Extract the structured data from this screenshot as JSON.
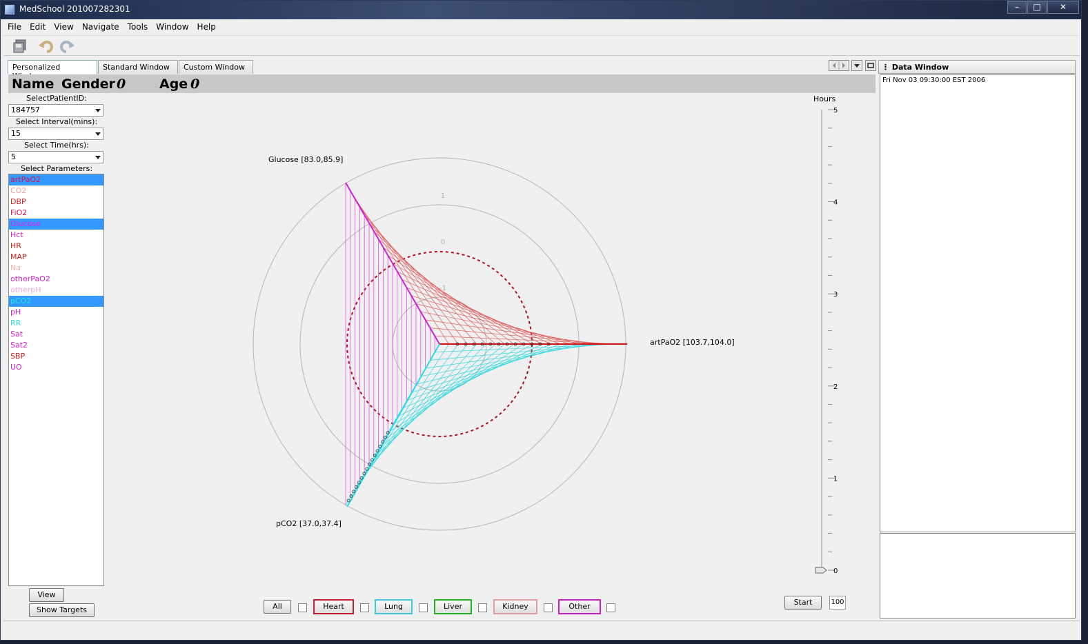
{
  "window": {
    "title": "MedSchool 201007282301"
  },
  "menu": [
    "File",
    "Edit",
    "View",
    "Navigate",
    "Tools",
    "Window",
    "Help"
  ],
  "toolbar": {
    "icons": [
      "save-all-icon",
      "undo-icon",
      "redo-icon"
    ]
  },
  "tabs": [
    "Personalized Window",
    "Standard Window",
    "Custom Window"
  ],
  "header": {
    "name_label": "Name",
    "gender_label": "Gender",
    "gender_value": "0",
    "age_label": "Age",
    "age_value": "0"
  },
  "controls": {
    "patient_label": "SelectPatientID:",
    "patient_value": "184757",
    "interval_label": "Select Interval(mins):",
    "interval_value": "15",
    "time_label": "Select Time(hrs):",
    "time_value": "5",
    "params_label": "Select Parameters:"
  },
  "parameters": [
    {
      "name": "artPaO2",
      "color": "#d4124a",
      "selected": true
    },
    {
      "name": "CO2",
      "color": "#f2a0a0",
      "selected": false
    },
    {
      "name": "DBP",
      "color": "#cc2222",
      "selected": false
    },
    {
      "name": "FiO2",
      "color": "#d4124a",
      "selected": false
    },
    {
      "name": "Glucose",
      "color": "#e020e0",
      "selected": true
    },
    {
      "name": "Hct",
      "color": "#d020c8",
      "selected": false
    },
    {
      "name": "HR",
      "color": "#cc2222",
      "selected": false
    },
    {
      "name": "MAP",
      "color": "#cc2222",
      "selected": false
    },
    {
      "name": "Na",
      "color": "#f0b0b0",
      "selected": false
    },
    {
      "name": "otherPaO2",
      "color": "#d020c8",
      "selected": false
    },
    {
      "name": "otherpH",
      "color": "#f0a8d8",
      "selected": false
    },
    {
      "name": "pCO2",
      "color": "#20e8e8",
      "selected": true
    },
    {
      "name": "pH",
      "color": "#d020c8",
      "selected": false
    },
    {
      "name": "RR",
      "color": "#30d8e0",
      "selected": false
    },
    {
      "name": "Sat",
      "color": "#d020c8",
      "selected": false
    },
    {
      "name": "Sat2",
      "color": "#d020c8",
      "selected": false
    },
    {
      "name": "SBP",
      "color": "#cc2222",
      "selected": false
    },
    {
      "name": "UO",
      "color": "#d020c8",
      "selected": false
    }
  ],
  "buttons": {
    "view": "View",
    "show_targets": "Show Targets",
    "start": "Start",
    "speed_value": "100",
    "all": "All"
  },
  "organs": [
    {
      "label": "Heart",
      "color": "#c02030"
    },
    {
      "label": "Lung",
      "color": "#40c8d8"
    },
    {
      "label": "Liver",
      "color": "#20b020"
    },
    {
      "label": "Kidney",
      "color": "#e0a0a0"
    },
    {
      "label": "Other",
      "color": "#c020c0"
    }
  ],
  "chart": {
    "axes": [
      {
        "label": "artPaO2 [103.7,104.0]",
        "color": "#d01010"
      },
      {
        "label": "Glucose [83.0,85.9]",
        "color": "#d020d8"
      },
      {
        "label": "pCO2 [37.0,37.4]",
        "color": "#20e0e8"
      }
    ],
    "ring_labels": [
      "1",
      "0",
      "-1"
    ],
    "hours_label": "Hours",
    "hours_ticks": [
      "5",
      "4",
      "3",
      "2",
      "1",
      "0"
    ],
    "slider_value": 0,
    "slider_max": 5
  },
  "data_window": {
    "title": "Data Window",
    "timestamp": "Fri Nov 03 09:30:00 EST 2006"
  }
}
